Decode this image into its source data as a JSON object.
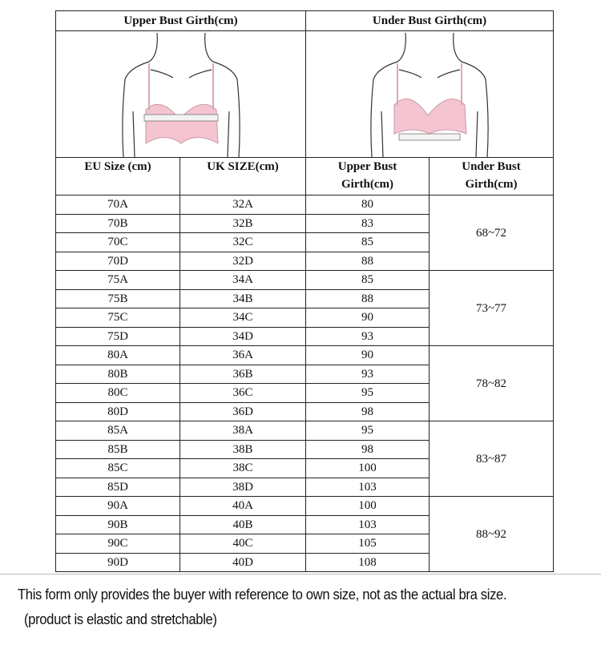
{
  "header": {
    "upper_bust": "Upper Bust Girth(cm)",
    "under_bust": "Under Bust Girth(cm)"
  },
  "illustrations": {
    "left": "upper-bust-measurement-figure",
    "right": "under-bust-measurement-figure",
    "bra_color": "#f4c4d0"
  },
  "columns": {
    "eu": "EU Size (cm)",
    "uk": "UK SIZE(cm)",
    "upper_line1": "Upper Bust",
    "upper_line2": "Girth(cm)",
    "under_line1": "Under Bust",
    "under_line2": "Girth(cm)"
  },
  "rows": [
    {
      "eu": "70A",
      "uk": "32A",
      "upper": "80"
    },
    {
      "eu": "70B",
      "uk": "32B",
      "upper": "83"
    },
    {
      "eu": "70C",
      "uk": "32C",
      "upper": "85"
    },
    {
      "eu": "70D",
      "uk": "32D",
      "upper": "88"
    },
    {
      "eu": "75A",
      "uk": "34A",
      "upper": "85"
    },
    {
      "eu": "75B",
      "uk": "34B",
      "upper": "88"
    },
    {
      "eu": "75C",
      "uk": "34C",
      "upper": "90"
    },
    {
      "eu": "75D",
      "uk": "34D",
      "upper": "93"
    },
    {
      "eu": "80A",
      "uk": "36A",
      "upper": "90"
    },
    {
      "eu": "80B",
      "uk": "36B",
      "upper": "93"
    },
    {
      "eu": "80C",
      "uk": "36C",
      "upper": "95"
    },
    {
      "eu": "80D",
      "uk": "36D",
      "upper": "98"
    },
    {
      "eu": "85A",
      "uk": "38A",
      "upper": "95"
    },
    {
      "eu": "85B",
      "uk": "38B",
      "upper": "98"
    },
    {
      "eu": "85C",
      "uk": "38C",
      "upper": "100"
    },
    {
      "eu": "85D",
      "uk": "38D",
      "upper": "103"
    },
    {
      "eu": "90A",
      "uk": "40A",
      "upper": "100"
    },
    {
      "eu": "90B",
      "uk": "40B",
      "upper": "103"
    },
    {
      "eu": "90C",
      "uk": "40C",
      "upper": "105"
    },
    {
      "eu": "90D",
      "uk": "40D",
      "upper": "108"
    }
  ],
  "under_bust_ranges": [
    "68~72",
    "73~77",
    "78~82",
    "83~87",
    "88~92"
  ],
  "notes": {
    "line1": "This form only provides the buyer with reference to own size, not as the actual bra size.",
    "line2": "(product is elastic and stretchable)"
  }
}
